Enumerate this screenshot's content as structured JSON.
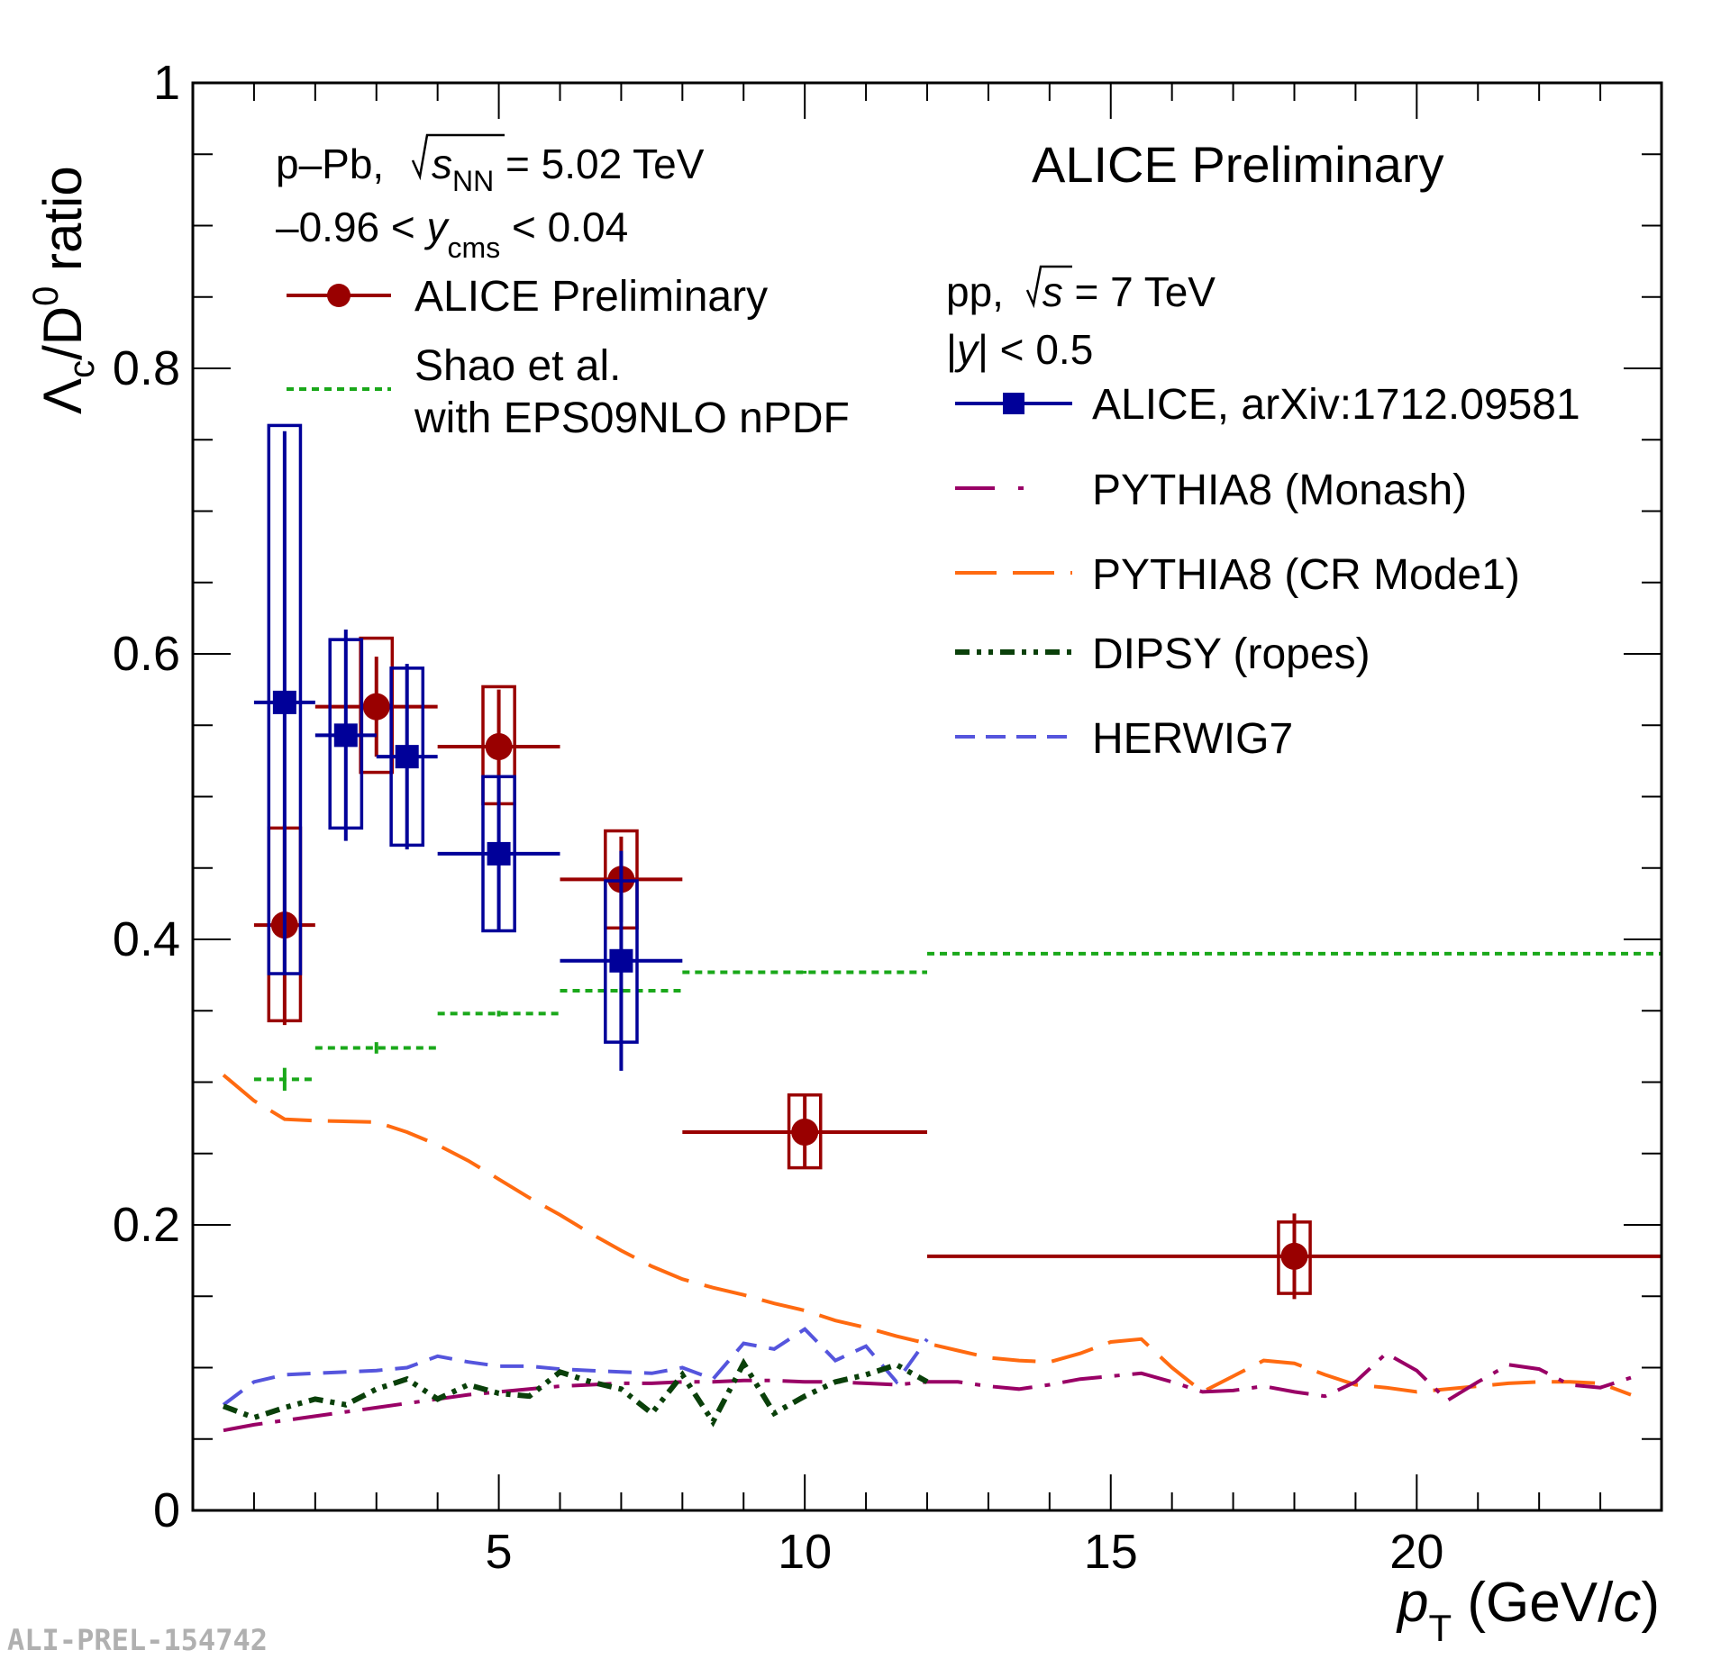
{
  "chart_data": {
    "type": "scatter",
    "title": "ALICE Preliminary",
    "xlabel": "p_T (GeV/c)",
    "xlabel_parts": {
      "p": "p",
      "sub": "T",
      "rest": " (GeV/",
      "c": "c",
      "close": ")"
    },
    "ylabel": "Λc/D0 ratio",
    "ylabel_parts": {
      "lambda": "Λ",
      "sub": "c",
      "mid": "/D",
      "sup": "0",
      "rest": " ratio"
    },
    "xlim": [
      0,
      24
    ],
    "ylim": [
      0,
      1
    ],
    "x_ticks": [
      5,
      10,
      15,
      20
    ],
    "x_tick_labels": [
      "5",
      "10",
      "15",
      "20"
    ],
    "y_ticks": [
      0,
      0.2,
      0.4,
      0.6,
      0.8,
      1
    ],
    "y_tick_labels": [
      "0",
      "0.2",
      "0.4",
      "0.6",
      "0.8",
      "1"
    ],
    "info_left": {
      "system": "p–Pb, √sNN = 5.02 TeV",
      "rapidity": "–0.96 < ycms < 0.04",
      "system_parts": {
        "a": "p–Pb, ",
        "s": "s",
        "sub": "NN",
        "b": " = 5.02 TeV"
      },
      "rapidity_parts": {
        "a": "–0.96 < ",
        "y": "y",
        "sub": "cms",
        "b": " < 0.04"
      }
    },
    "info_right": {
      "system": "pp, √s = 7 TeV",
      "rapidity": "|y| < 0.5",
      "system_parts": {
        "a": "pp, ",
        "s": "s",
        "b": " = 7 TeV"
      },
      "rapidity_parts": {
        "a": "|",
        "y": "y",
        "b": "| < 0.5"
      }
    },
    "legend": [
      {
        "label": "ALICE Preliminary",
        "color": "#990000",
        "style": "marker-circle"
      },
      {
        "label": "Shao et al.",
        "label2": "with EPS09NLO nPDF",
        "color": "#1aa81a",
        "style": "dotted"
      },
      {
        "label": "ALICE, arXiv:1712.09581",
        "color": "#000099",
        "style": "marker-square"
      },
      {
        "label": "PYTHIA8 (Monash)",
        "color": "#990066",
        "style": "dash-dot"
      },
      {
        "label": "PYTHIA8 (CR Mode1)",
        "color": "#ff6a10",
        "style": "long-dash"
      },
      {
        "label": "DIPSY (ropes)",
        "color": "#0a400a",
        "style": "dash-dot-dot"
      },
      {
        "label": "HERWIG7",
        "color": "#5555dd",
        "style": "dashed"
      }
    ],
    "series": [
      {
        "name": "ALICE Preliminary (p–Pb)",
        "color": "#990000",
        "marker": "circle",
        "points": [
          {
            "x": 1.5,
            "y": 0.41,
            "xlo": 1,
            "xhi": 2,
            "stat": 0.07,
            "sys_lo": 0.067,
            "sys_hi": 0.068
          },
          {
            "x": 3,
            "y": 0.563,
            "xlo": 2,
            "xhi": 4,
            "stat": 0.035,
            "sys_lo": 0.046,
            "sys_hi": 0.048
          },
          {
            "x": 5,
            "y": 0.535,
            "xlo": 4,
            "xhi": 6,
            "stat": 0.04,
            "sys_lo": 0.04,
            "sys_hi": 0.042
          },
          {
            "x": 7,
            "y": 0.442,
            "xlo": 6,
            "xhi": 8,
            "stat": 0.03,
            "sys_lo": 0.034,
            "sys_hi": 0.034
          },
          {
            "x": 10,
            "y": 0.265,
            "xlo": 8,
            "xhi": 12,
            "stat": 0.025,
            "sys_lo": 0.025,
            "sys_hi": 0.026
          },
          {
            "x": 18,
            "y": 0.178,
            "xlo": 12,
            "xhi": 24,
            "stat": 0.03,
            "sys_lo": 0.026,
            "sys_hi": 0.024
          }
        ]
      },
      {
        "name": "ALICE, arXiv:1712.09581 (pp)",
        "color": "#000099",
        "marker": "square",
        "points": [
          {
            "x": 1.5,
            "y": 0.566,
            "xlo": 1,
            "xhi": 2,
            "stat": 0.19,
            "sys_lo": 0.19,
            "sys_hi": 0.194
          },
          {
            "x": 2.5,
            "y": 0.543,
            "xlo": 2,
            "xhi": 3,
            "stat": 0.074,
            "sys_lo": 0.065,
            "sys_hi": 0.067
          },
          {
            "x": 3.5,
            "y": 0.528,
            "xlo": 3,
            "xhi": 4,
            "stat": 0.065,
            "sys_lo": 0.062,
            "sys_hi": 0.062
          },
          {
            "x": 5,
            "y": 0.46,
            "xlo": 4,
            "xhi": 6,
            "stat": 0.054,
            "sys_lo": 0.054,
            "sys_hi": 0.054
          },
          {
            "x": 7,
            "y": 0.385,
            "xlo": 6,
            "xhi": 8,
            "stat": 0.077,
            "sys_lo": 0.057,
            "sys_hi": 0.056
          }
        ]
      }
    ],
    "shao": {
      "name": "Shao et al. with EPS09NLO nPDF",
      "color": "#1aa81a",
      "steps": [
        {
          "xlo": 1,
          "xhi": 2,
          "y": 0.302,
          "err": 0.008
        },
        {
          "xlo": 2,
          "xhi": 4,
          "y": 0.324,
          "err": 0.004
        },
        {
          "xlo": 4,
          "xhi": 6,
          "y": 0.348,
          "err": 0.002
        },
        {
          "xlo": 6,
          "xhi": 8,
          "y": 0.364,
          "err": 0.002
        },
        {
          "xlo": 8,
          "xhi": 12,
          "y": 0.377,
          "err": 0.001
        },
        {
          "xlo": 12,
          "xhi": 24,
          "y": 0.39,
          "err": 0.001
        }
      ]
    },
    "curves": [
      {
        "name": "PYTHIA8 (CR Mode1)",
        "color": "#ff6a10",
        "dash": "48 18",
        "x": [
          0.5,
          1,
          1.5,
          2,
          3,
          3.5,
          4,
          4.5,
          5,
          5.5,
          6,
          6.5,
          7,
          7.5,
          8,
          8.5,
          9,
          9.5,
          10,
          10.5,
          11,
          11.5,
          12,
          12.5,
          13,
          13.5,
          14,
          14.5,
          15,
          15.5,
          16,
          16.5,
          17,
          17.5,
          18,
          18.5,
          19,
          19.5,
          20,
          20.5,
          21,
          21.5,
          22,
          22.5,
          23,
          23.5
        ],
        "y": [
          0.305,
          0.287,
          0.274,
          0.273,
          0.272,
          0.265,
          0.256,
          0.245,
          0.232,
          0.219,
          0.207,
          0.194,
          0.182,
          0.171,
          0.162,
          0.156,
          0.151,
          0.145,
          0.14,
          0.133,
          0.128,
          0.122,
          0.117,
          0.112,
          0.107,
          0.105,
          0.104,
          0.11,
          0.118,
          0.12,
          0.1,
          0.083,
          0.094,
          0.105,
          0.103,
          0.095,
          0.088,
          0.086,
          0.083,
          0.085,
          0.087,
          0.089,
          0.09,
          0.09,
          0.089,
          0.081
        ]
      },
      {
        "name": "PYTHIA8 (Monash)",
        "color": "#990066",
        "dash": "44 14 6 14",
        "x": [
          0.5,
          1,
          1.5,
          2,
          2.5,
          3,
          3.5,
          4,
          4.5,
          5,
          5.5,
          6,
          6.5,
          7,
          7.5,
          8,
          8.5,
          9,
          9.5,
          10,
          10.5,
          11,
          11.5,
          12,
          12.5,
          13,
          13.5,
          14,
          14.5,
          15,
          15.5,
          16,
          16.5,
          17,
          17.5,
          18,
          18.5,
          19,
          19.5,
          20,
          20.5,
          21,
          21.5,
          22,
          22.5,
          23,
          23.5
        ],
        "y": [
          0.056,
          0.06,
          0.063,
          0.066,
          0.069,
          0.072,
          0.075,
          0.078,
          0.081,
          0.083,
          0.085,
          0.087,
          0.088,
          0.089,
          0.089,
          0.09,
          0.09,
          0.091,
          0.091,
          0.09,
          0.09,
          0.089,
          0.088,
          0.09,
          0.09,
          0.087,
          0.085,
          0.088,
          0.092,
          0.094,
          0.096,
          0.09,
          0.083,
          0.084,
          0.087,
          0.083,
          0.08,
          0.09,
          0.11,
          0.098,
          0.077,
          0.09,
          0.102,
          0.099,
          0.088,
          0.086,
          0.093
        ]
      },
      {
        "name": "HERWIG7",
        "color": "#5555dd",
        "dash": "26 14",
        "x": [
          0.5,
          1,
          1.5,
          2,
          2.5,
          3,
          3.5,
          4,
          4.5,
          5,
          5.5,
          6,
          6.5,
          7,
          7.5,
          8,
          8.5,
          9,
          9.5,
          10,
          10.5,
          11,
          11.5,
          12
        ],
        "y": [
          0.074,
          0.09,
          0.095,
          0.096,
          0.097,
          0.098,
          0.1,
          0.108,
          0.104,
          0.101,
          0.101,
          0.099,
          0.098,
          0.097,
          0.096,
          0.1,
          0.092,
          0.117,
          0.113,
          0.127,
          0.105,
          0.115,
          0.09,
          0.12
        ]
      },
      {
        "name": "DIPSY (ropes)",
        "color": "#0a400a",
        "dash": "16 8 5 8 5 8",
        "x": [
          0.5,
          1,
          1.5,
          2,
          2.5,
          3,
          3.5,
          4,
          4.5,
          5,
          5.5,
          6,
          6.5,
          7,
          7.5,
          8,
          8.5,
          9,
          9.5,
          10,
          10.5,
          11,
          11.5,
          12
        ],
        "y": [
          0.073,
          0.065,
          0.072,
          0.078,
          0.074,
          0.085,
          0.092,
          0.078,
          0.088,
          0.082,
          0.08,
          0.097,
          0.09,
          0.085,
          0.068,
          0.095,
          0.062,
          0.103,
          0.068,
          0.08,
          0.09,
          0.095,
          0.102,
          0.09
        ]
      }
    ],
    "watermark": "ALI-PREL-154742"
  }
}
